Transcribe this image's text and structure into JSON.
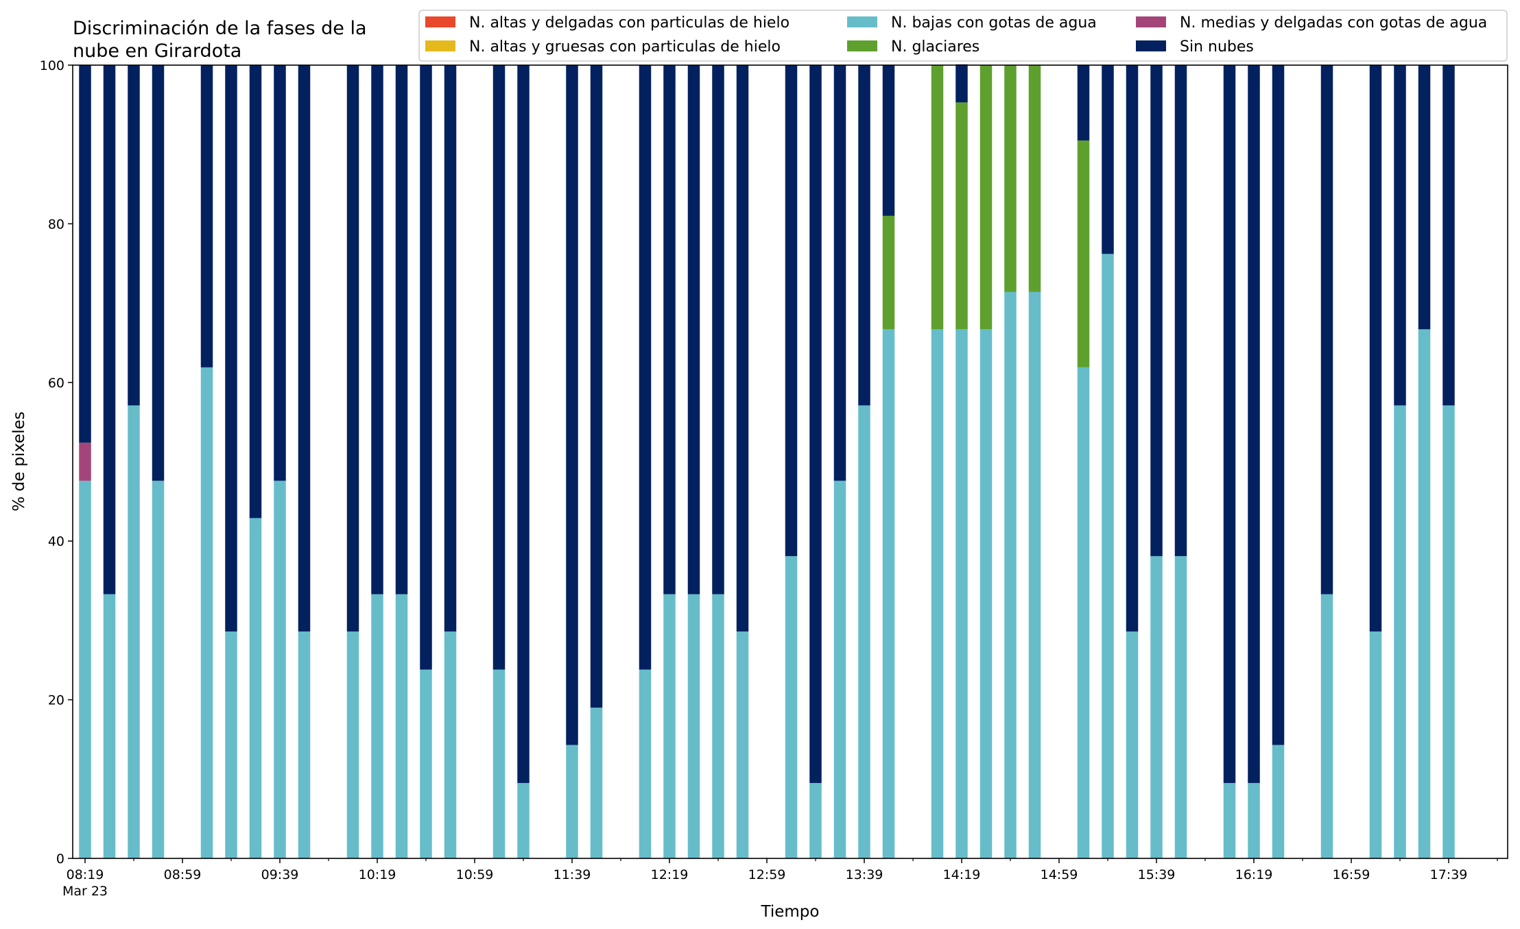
{
  "chart_data": {
    "type": "bar",
    "stacked": true,
    "title": "Discriminación de la fases de la nube en Girardota",
    "title_lines": [
      "Discriminación de la fases de la",
      "nube en Girardota"
    ],
    "xlabel": "Tiempo",
    "ylabel": "% de pixeles",
    "ylim": [
      0,
      100
    ],
    "yticks": [
      0,
      20,
      40,
      60,
      80,
      100
    ],
    "x_date_label": "Mar 23",
    "x_start": "08:19",
    "x_end": "17:59",
    "x_step_minutes": 10,
    "xticks": [
      "08:19",
      "08:59",
      "09:39",
      "10:19",
      "10:59",
      "11:39",
      "12:19",
      "12:59",
      "13:39",
      "14:19",
      "14:59",
      "15:39",
      "16:19",
      "16:59",
      "17:39"
    ],
    "minor_tick_step_minutes": 20,
    "grid": false,
    "legend_position": "upper-right",
    "legend_columns": 3,
    "x": [
      "08:19",
      "08:29",
      "08:39",
      "08:49",
      "08:59",
      "09:09",
      "09:19",
      "09:29",
      "09:39",
      "09:49",
      "09:59",
      "10:09",
      "10:19",
      "10:29",
      "10:39",
      "10:49",
      "10:59",
      "11:09",
      "11:19",
      "11:29",
      "11:39",
      "11:49",
      "11:59",
      "12:09",
      "12:19",
      "12:29",
      "12:39",
      "12:49",
      "12:59",
      "13:09",
      "13:19",
      "13:29",
      "13:39",
      "13:49",
      "13:59",
      "14:09",
      "14:19",
      "14:29",
      "14:39",
      "14:49",
      "14:59",
      "15:09",
      "15:19",
      "15:29",
      "15:39",
      "15:49",
      "15:59",
      "16:09",
      "16:19",
      "16:29",
      "16:39",
      "16:49",
      "16:59",
      "17:09",
      "17:19",
      "17:29",
      "17:39",
      "17:49",
      "17:59"
    ],
    "series": [
      {
        "name": "N. altas y delgadas con particulas de hielo",
        "color": "#e8482b",
        "values": [
          0,
          0,
          0,
          0,
          null,
          0,
          0,
          0,
          0,
          0,
          null,
          0,
          0,
          0,
          0,
          0,
          null,
          0,
          0,
          null,
          0,
          0,
          null,
          0,
          0,
          0,
          0,
          0,
          null,
          0,
          0,
          0,
          0,
          0,
          null,
          0,
          0,
          0,
          0,
          0,
          null,
          0,
          0,
          0,
          0,
          0,
          null,
          0,
          0,
          0,
          null,
          0,
          null,
          0,
          0,
          0,
          0,
          null,
          null
        ]
      },
      {
        "name": "N. altas y gruesas con particulas de hielo",
        "color": "#e5b91c",
        "values": [
          0,
          0,
          0,
          0,
          null,
          0,
          0,
          0,
          0,
          0,
          null,
          0,
          0,
          0,
          0,
          0,
          null,
          0,
          0,
          null,
          0,
          0,
          null,
          0,
          0,
          0,
          0,
          0,
          null,
          0,
          0,
          0,
          0,
          0,
          null,
          0,
          0,
          0,
          0,
          0,
          null,
          0,
          0,
          0,
          0,
          0,
          null,
          0,
          0,
          0,
          null,
          0,
          null,
          0,
          0,
          0,
          0,
          null,
          null
        ]
      },
      {
        "name": "N. bajas con gotas de agua",
        "color": "#66bdc9",
        "values": [
          47.6,
          33.3,
          57.1,
          47.6,
          null,
          61.9,
          28.6,
          42.9,
          47.6,
          28.6,
          null,
          28.6,
          33.3,
          33.3,
          23.8,
          28.6,
          null,
          23.8,
          9.5,
          null,
          14.3,
          19.0,
          null,
          23.8,
          33.3,
          33.3,
          33.3,
          28.6,
          null,
          38.1,
          9.5,
          47.6,
          57.1,
          66.7,
          null,
          66.7,
          66.7,
          66.7,
          71.4,
          71.4,
          null,
          61.9,
          76.2,
          28.6,
          38.1,
          38.1,
          null,
          9.5,
          9.5,
          14.3,
          null,
          33.3,
          null,
          28.6,
          57.1,
          66.7,
          57.1,
          null,
          null
        ]
      },
      {
        "name": "N. glaciares",
        "color": "#5ea02e",
        "values": [
          0,
          0,
          0,
          0,
          null,
          0,
          0,
          0,
          0,
          0,
          null,
          0,
          0,
          0,
          0,
          0,
          null,
          0,
          0,
          null,
          0,
          0,
          null,
          0,
          0,
          0,
          0,
          0,
          null,
          0,
          0,
          0,
          0,
          14.3,
          null,
          33.3,
          28.6,
          33.3,
          28.6,
          28.6,
          null,
          28.6,
          0,
          0,
          0,
          0,
          null,
          0,
          0,
          0,
          null,
          0,
          null,
          0,
          0,
          0,
          0,
          null,
          null
        ]
      },
      {
        "name": "N. medias y delgadas con gotas de agua",
        "color": "#a4457a",
        "values": [
          4.8,
          0,
          0,
          0,
          null,
          0,
          0,
          0,
          0,
          0,
          null,
          0,
          0,
          0,
          0,
          0,
          null,
          0,
          0,
          null,
          0,
          0,
          null,
          0,
          0,
          0,
          0,
          0,
          null,
          0,
          0,
          0,
          0,
          0,
          null,
          0,
          0,
          0,
          0,
          0,
          null,
          0,
          0,
          0,
          0,
          0,
          null,
          0,
          0,
          0,
          null,
          0,
          null,
          0,
          0,
          0,
          0,
          null,
          null
        ]
      },
      {
        "name": "Sin nubes",
        "color": "#03215f",
        "values": [
          47.6,
          66.7,
          42.9,
          52.4,
          null,
          38.1,
          71.4,
          57.1,
          52.4,
          71.4,
          null,
          71.4,
          66.7,
          66.7,
          76.2,
          71.4,
          null,
          76.2,
          90.5,
          null,
          85.7,
          81.0,
          null,
          76.2,
          66.7,
          66.7,
          66.7,
          71.4,
          null,
          61.9,
          90.5,
          52.4,
          42.9,
          19.0,
          null,
          0,
          4.8,
          0,
          0,
          0,
          null,
          9.5,
          23.8,
          71.4,
          61.9,
          61.9,
          null,
          90.5,
          90.5,
          85.7,
          null,
          66.7,
          null,
          71.4,
          42.9,
          33.3,
          42.9,
          null,
          null
        ]
      }
    ]
  }
}
